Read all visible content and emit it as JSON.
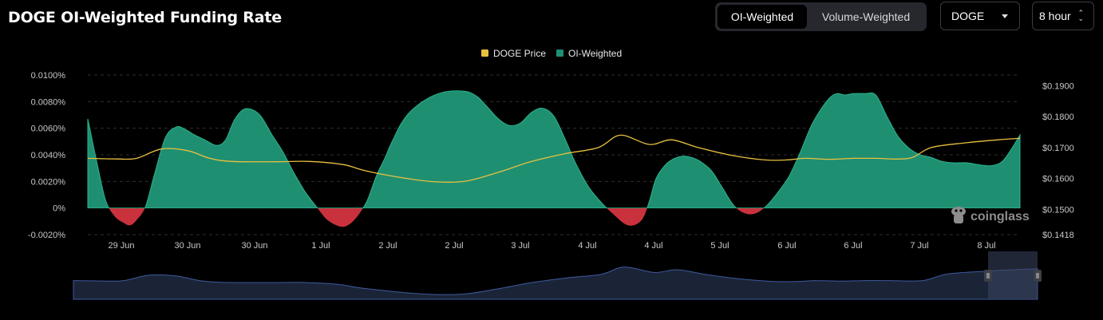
{
  "page": {
    "title": "DOGE OI-Weighted Funding Rate"
  },
  "controls": {
    "segment": {
      "oi_label": "OI-Weighted",
      "vol_label": "Volume-Weighted",
      "selected": "OI-Weighted"
    },
    "symbol_select": {
      "value": "DOGE"
    },
    "interval_select": {
      "value": "8 hour"
    }
  },
  "watermark": {
    "text": "coinglass"
  },
  "colors": {
    "positive": "#1f8f72",
    "negative": "#c9323d",
    "price_line": "#e9c03f",
    "grid": "#2e2e2e",
    "axis_text": "#c8c8c8",
    "navigator_fill": "#1b2436",
    "navigator_line": "#3e5aa0"
  },
  "chart_data": {
    "type": "area",
    "legend": [
      {
        "name": "DOGE Price",
        "color": "#e9c03f"
      },
      {
        "name": "OI-Weighted",
        "color": "#1f8f72"
      }
    ],
    "legend_position": "top-center",
    "x_tick_labels": [
      "29 Jun",
      "30 Jun",
      "30 Jun",
      "1 Jul",
      "2 Jul",
      "2 Jul",
      "3 Jul",
      "4 Jul",
      "4 Jul",
      "5 Jul",
      "6 Jul",
      "6 Jul",
      "7 Jul",
      "8 Jul"
    ],
    "y_left": {
      "tick_labels": [
        "-0.0020%",
        "0%",
        "0.0020%",
        "0.0040%",
        "0.0060%",
        "0.0080%",
        "0.0100%"
      ],
      "ylim": [
        -0.002,
        0.01
      ]
    },
    "y_right": {
      "tick_labels": [
        "$0.1418",
        "$0.1500",
        "$0.1600",
        "$0.1700",
        "$0.1800",
        "$0.1900"
      ],
      "ylim": [
        0.1418,
        0.1935
      ]
    },
    "series": [
      {
        "name": "OI-Weighted",
        "unit": "%",
        "x": [
          0,
          0.4,
          0.8,
          1.2,
          1.6,
          1.9,
          2.2,
          2.6,
          3,
          3.5,
          4,
          4.4,
          4.8,
          5.3,
          5.8,
          6.2,
          6.6,
          7,
          7.4,
          7.8,
          8.3,
          8.8,
          9.3,
          9.8,
          10.3,
          10.8,
          11.4,
          11.8,
          12.2,
          12.6,
          13,
          13.4,
          13.6,
          13.8,
          14.1,
          14.5,
          15,
          15.5,
          16,
          16.4,
          16.8,
          17.2,
          17.6,
          18,
          18.5,
          19,
          19.5,
          20,
          20.5,
          21,
          21.5,
          22,
          22.6,
          23.2,
          23.7,
          24.2,
          24.6,
          25,
          25.3,
          25.6,
          26,
          26.4,
          26.8,
          27.2,
          27.6,
          28.1,
          28.6,
          29.1,
          29.6,
          30.1,
          30.6,
          31.1,
          31.6,
          32.1,
          32.6,
          33.1,
          33.5,
          33.8,
          34.1,
          34.5,
          35,
          35.5,
          36,
          36.5,
          37,
          37.5,
          38,
          38.5,
          39,
          39.6,
          40,
          40.4,
          40.8,
          41.2,
          41.6,
          42
        ],
        "values": [
          0.0067,
          0.0035,
          0.0006,
          -0.0006,
          -0.0011,
          -0.0013,
          -0.0009,
          0.0001,
          0.0025,
          0.0053,
          0.0061,
          0.0059,
          0.0055,
          0.0051,
          0.0047,
          0.0051,
          0.0066,
          0.0074,
          0.0074,
          0.0069,
          0.0055,
          0.0042,
          0.0026,
          0.0012,
          0.0001,
          -0.0009,
          -0.0014,
          -0.0012,
          -0.0005,
          0.0006,
          0.0024,
          0.0038,
          0.0046,
          0.0053,
          0.0063,
          0.0072,
          0.0079,
          0.0084,
          0.0087,
          0.0088,
          0.0088,
          0.0087,
          0.0083,
          0.0076,
          0.0067,
          0.0062,
          0.0064,
          0.0072,
          0.0075,
          0.0069,
          0.0052,
          0.0033,
          0.0015,
          0.0003,
          -0.0005,
          -0.0012,
          -0.0013,
          -0.0008,
          0.0005,
          0.0022,
          0.0032,
          0.0037,
          0.0039,
          0.0038,
          0.0035,
          0.0028,
          0.0015,
          0.0002,
          -0.0004,
          -0.0004,
          0.0002,
          0.0012,
          0.0024,
          0.0042,
          0.0062,
          0.0076,
          0.0084,
          0.0086,
          0.0085,
          0.0086,
          0.0086,
          0.0085,
          0.0069,
          0.0054,
          0.0045,
          0.004,
          0.0038,
          0.0035,
          0.0034,
          0.0034,
          0.0033,
          0.0032,
          0.0032,
          0.0035,
          0.0044,
          0.0055
        ]
      },
      {
        "name": "DOGE Price",
        "unit": "$",
        "x": [
          0,
          1.3,
          2.2,
          3.3,
          4.5,
          5.5,
          6.5,
          8.5,
          10,
          11.5,
          12.5,
          14,
          15.5,
          17,
          18.5,
          20,
          21.5,
          23,
          24,
          25.3,
          26.3,
          27.5,
          29,
          30.5,
          31.5,
          32.3,
          33.4,
          34.5,
          35.5,
          37,
          38,
          39.5,
          41,
          42
        ],
        "values": [
          0.1665,
          0.1663,
          0.1665,
          0.1695,
          0.169,
          0.1665,
          0.1655,
          0.1654,
          0.1655,
          0.1645,
          0.1625,
          0.1604,
          0.159,
          0.1591,
          0.162,
          0.1655,
          0.168,
          0.17,
          0.174,
          0.171,
          0.1725,
          0.17,
          0.1675,
          0.166,
          0.166,
          0.1665,
          0.1662,
          0.1665,
          0.1665,
          0.1665,
          0.17,
          0.1715,
          0.1725,
          0.173
        ]
      }
    ],
    "grid": true
  }
}
